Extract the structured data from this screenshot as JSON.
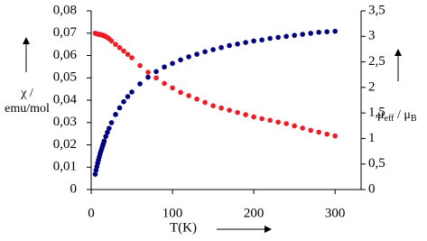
{
  "chart_data": {
    "type": "scatter",
    "x_label": "T(K)",
    "y_label": [
      "χ /",
      "emu/mol"
    ],
    "y2_label": [
      "μ",
      "eff",
      " / μ",
      "B"
    ],
    "x": [
      5,
      6,
      7,
      8,
      9,
      10,
      11,
      12,
      13,
      14,
      15,
      16,
      18,
      20,
      22,
      25,
      30,
      35,
      40,
      45,
      50,
      60,
      70,
      80,
      90,
      100,
      110,
      120,
      130,
      140,
      150,
      160,
      170,
      180,
      190,
      200,
      210,
      220,
      230,
      240,
      250,
      260,
      270,
      280,
      290,
      300
    ],
    "series": [
      {
        "color": "#ee1c25",
        "axis": "y",
        "values": [
          0.07,
          0.0698,
          0.0697,
          0.0696,
          0.0695,
          0.0695,
          0.0694,
          0.0693,
          0.0692,
          0.0691,
          0.069,
          0.0688,
          0.0685,
          0.068,
          0.0675,
          0.0665,
          0.065,
          0.0635,
          0.062,
          0.0605,
          0.059,
          0.0555,
          0.0525,
          0.05,
          0.0475,
          0.0455,
          0.0435,
          0.042,
          0.0405,
          0.039,
          0.0375,
          0.0365,
          0.0355,
          0.0345,
          0.0335,
          0.0325,
          0.0317,
          0.031,
          0.0302,
          0.0295,
          0.0285,
          0.0275,
          0.0265,
          0.0257,
          0.0248,
          0.024
        ]
      },
      {
        "color": "#000080",
        "axis": "y2",
        "values": [
          0.3,
          0.38,
          0.45,
          0.52,
          0.58,
          0.64,
          0.7,
          0.75,
          0.8,
          0.85,
          0.9,
          0.95,
          1.04,
          1.12,
          1.2,
          1.31,
          1.47,
          1.6,
          1.72,
          1.82,
          1.91,
          2.07,
          2.2,
          2.31,
          2.4,
          2.47,
          2.54,
          2.6,
          2.65,
          2.7,
          2.74,
          2.78,
          2.82,
          2.85,
          2.88,
          2.91,
          2.93,
          2.96,
          2.98,
          3.0,
          3.02,
          3.04,
          3.06,
          3.08,
          3.09,
          3.1
        ]
      }
    ],
    "xlim": [
      0,
      332
    ],
    "xticks": [
      0,
      100,
      200,
      300
    ],
    "ylim": [
      0,
      0.08
    ],
    "yticks": [
      0,
      {
        "value": 0.01,
        "label": "0,01"
      },
      {
        "value": 0.02,
        "label": "0,02"
      },
      {
        "value": 0.03,
        "label": "0,03"
      },
      {
        "value": 0.04,
        "label": "0,04"
      },
      {
        "value": 0.05,
        "label": "0,05"
      },
      {
        "value": 0.06,
        "label": "0,06"
      },
      {
        "value": 0.07,
        "label": "0,07"
      },
      {
        "value": 0.08,
        "label": "0,08"
      }
    ],
    "y2lim": [
      0,
      3.5
    ],
    "y2ticks": [
      0,
      {
        "value": 0.5,
        "label": "0,5"
      },
      1,
      {
        "value": 1.5,
        "label": "1,5"
      },
      2,
      {
        "value": 2.5,
        "label": "2,5"
      },
      3,
      {
        "value": 3.5,
        "label": "3,5"
      }
    ]
  }
}
